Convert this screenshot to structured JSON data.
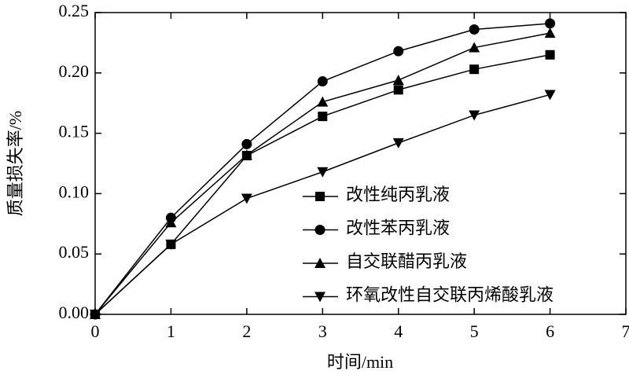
{
  "chart_data": {
    "type": "line",
    "x_label": "时间/min",
    "y_label": "质量损失率/%",
    "x": [
      0,
      1,
      2,
      3,
      4,
      5,
      6
    ],
    "series": [
      {
        "name": "改性纯丙乳液",
        "color": "#000000",
        "marker": "square",
        "values": [
          0,
          0.058,
          0.1315,
          0.164,
          0.186,
          0.203,
          0.215
        ]
      },
      {
        "name": "改性苯丙乳液",
        "color": "#000000",
        "marker": "circle",
        "values": [
          0,
          0.08,
          0.141,
          0.193,
          0.218,
          0.236,
          0.241
        ]
      },
      {
        "name": "自交联醋丙乳液",
        "color": "#000000",
        "marker": "triangle-up",
        "values": [
          0,
          0.076,
          0.132,
          0.176,
          0.194,
          0.221,
          0.233
        ]
      },
      {
        "name": "环氧改性自交联丙烯酸乳液",
        "color": "#000000",
        "marker": "triangle-down",
        "values": [
          0,
          0.058,
          0.096,
          0.118,
          0.142,
          0.165,
          0.182
        ]
      }
    ],
    "xlim": [
      0,
      7
    ],
    "xticks": [
      0,
      1,
      2,
      3,
      4,
      5,
      6,
      7
    ],
    "ylim": [
      0,
      0.25
    ],
    "yticks": [
      {
        "value": 0,
        "label": "0.00"
      },
      {
        "value": 0.05,
        "label": "0.05"
      },
      {
        "value": 0.1,
        "label": "0.10"
      },
      {
        "value": 0.15,
        "label": "0.15"
      },
      {
        "value": 0.2,
        "label": "0.20"
      },
      {
        "value": 0.25,
        "label": "0.25"
      }
    ],
    "grid": false
  }
}
